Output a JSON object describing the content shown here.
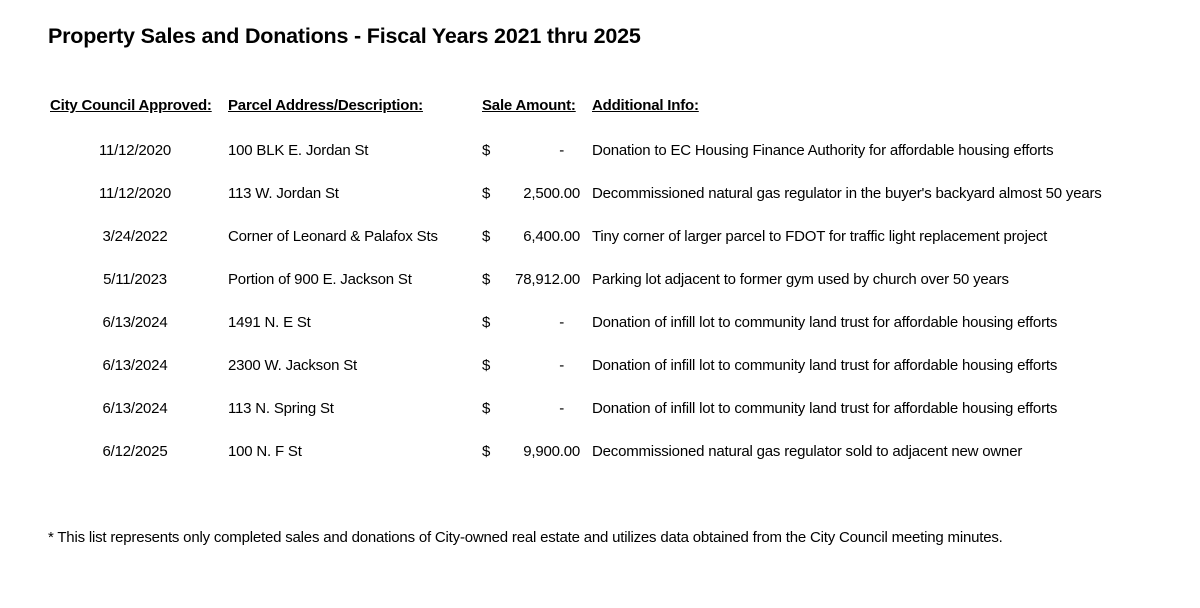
{
  "title": "Property Sales and Donations - Fiscal Years 2021 thru 2025",
  "headers": {
    "date": "City Council Approved:",
    "address": "Parcel Address/Description:",
    "amount": "Sale Amount:",
    "info": "Additional Info:"
  },
  "currency_symbol": "$",
  "rows": [
    {
      "date": "11/12/2020",
      "address": "100 BLK E. Jordan St",
      "amount": "-",
      "info": "Donation to EC Housing Finance Authority for affordable housing efforts"
    },
    {
      "date": "11/12/2020",
      "address": "113 W. Jordan St",
      "amount": "2,500.00",
      "info": "Decommissioned natural gas regulator in the buyer's backyard almost 50 years"
    },
    {
      "date": "3/24/2022",
      "address": "Corner of Leonard & Palafox Sts",
      "amount": "6,400.00",
      "info": "Tiny corner of larger parcel to FDOT for traffic light replacement project"
    },
    {
      "date": "5/11/2023",
      "address": "Portion of 900 E. Jackson St",
      "amount": "78,912.00",
      "info": "Parking lot adjacent to former gym used by church over 50 years"
    },
    {
      "date": "6/13/2024",
      "address": "1491 N. E St",
      "amount": "-",
      "info": "Donation of infill lot to community land trust for affordable housing efforts"
    },
    {
      "date": "6/13/2024",
      "address": "2300 W. Jackson St",
      "amount": "-",
      "info": "Donation of infill lot to community land trust for affordable housing efforts"
    },
    {
      "date": "6/13/2024",
      "address": "113 N. Spring St",
      "amount": "-",
      "info": "Donation of infill lot to community land trust for affordable housing efforts"
    },
    {
      "date": "6/12/2025",
      "address": "100 N. F St",
      "amount": "9,900.00",
      "info": "Decommissioned natural gas regulator sold to adjacent new owner"
    }
  ],
  "footnote": "* This list represents only completed sales and donations of City-owned real estate and utilizes data obtained from the City Council meeting minutes."
}
